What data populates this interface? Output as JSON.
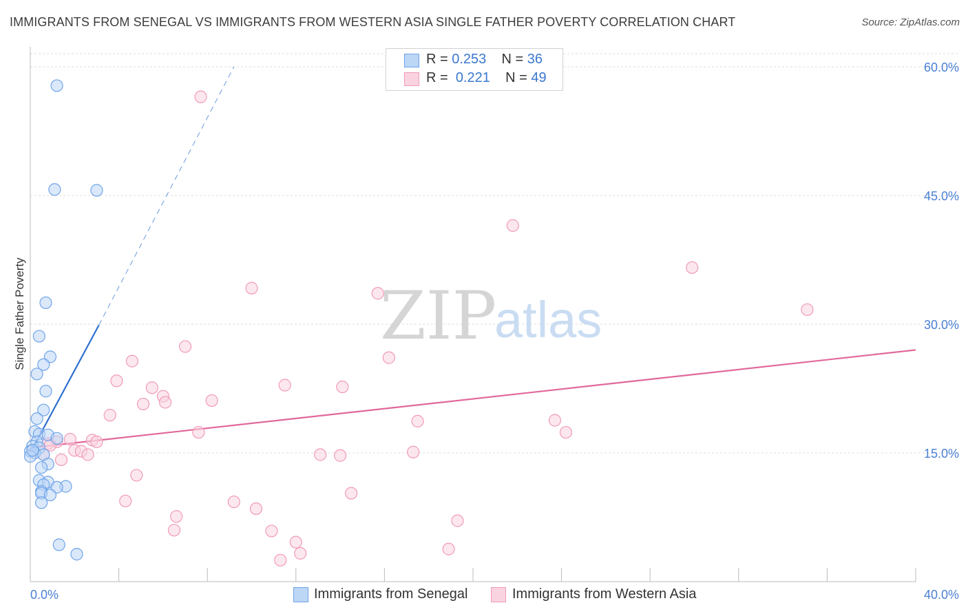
{
  "chart_data": {
    "type": "scatter",
    "title": "IMMIGRANTS FROM SENEGAL VS IMMIGRANTS FROM WESTERN ASIA SINGLE FATHER POVERTY CORRELATION CHART",
    "source": "Source: ZipAtlas.com",
    "ylabel": "Single Father Poverty",
    "xlim": [
      0,
      40
    ],
    "ylim": [
      0,
      60
    ],
    "y_ticks": [
      {
        "value": 15,
        "label": "15.0%"
      },
      {
        "value": 30,
        "label": "30.0%"
      },
      {
        "value": 45,
        "label": "45.0%"
      },
      {
        "value": 60,
        "label": "60.0%"
      }
    ],
    "x_tick_labels": {
      "min": "0.0%",
      "max": "40.0%"
    },
    "watermark": {
      "zip": "ZIP",
      "atlas": "atlas"
    },
    "legend": {
      "rows": [
        {
          "r_label": "R =",
          "r_value": "0.253",
          "n_label": "N =",
          "n_value": "36"
        },
        {
          "r_label": "R =",
          "r_value": "0.221",
          "n_label": "N =",
          "n_value": "49"
        }
      ]
    },
    "series": [
      {
        "name": "Immigrants from Senegal",
        "color": "#6fa4e8",
        "fill": "#bcd6f5",
        "line_color": "#2d6fcf",
        "trend": {
          "x0": 0.0,
          "y0": 15.0,
          "x1": 3.1,
          "y1": 29.9,
          "dash_x1": 9.2,
          "dash_y1": 60.0
        },
        "points": [
          [
            1.2,
            57.8
          ],
          [
            1.1,
            45.7
          ],
          [
            3.0,
            45.6
          ],
          [
            0.7,
            32.5
          ],
          [
            0.4,
            28.6
          ],
          [
            0.9,
            26.2
          ],
          [
            0.6,
            25.3
          ],
          [
            0.3,
            24.2
          ],
          [
            0.7,
            22.2
          ],
          [
            0.6,
            20.0
          ],
          [
            0.3,
            19.0
          ],
          [
            0.2,
            17.5
          ],
          [
            0.4,
            17.2
          ],
          [
            0.8,
            17.1
          ],
          [
            1.2,
            16.7
          ],
          [
            0.3,
            16.3
          ],
          [
            0.1,
            15.8
          ],
          [
            0.4,
            15.6
          ],
          [
            0.0,
            15.2
          ],
          [
            0.2,
            15.0
          ],
          [
            0.6,
            14.8
          ],
          [
            0.0,
            14.6
          ],
          [
            0.8,
            13.7
          ],
          [
            0.5,
            13.3
          ],
          [
            0.4,
            11.8
          ],
          [
            0.8,
            11.6
          ],
          [
            0.6,
            11.3
          ],
          [
            1.6,
            11.1
          ],
          [
            1.2,
            11.0
          ],
          [
            0.5,
            10.5
          ],
          [
            0.5,
            10.3
          ],
          [
            0.9,
            10.1
          ],
          [
            0.5,
            9.2
          ],
          [
            1.3,
            4.3
          ],
          [
            2.1,
            3.2
          ],
          [
            0.1,
            15.3
          ]
        ]
      },
      {
        "name": "Immigrants from Western Asia",
        "color": "#f09ab8",
        "fill": "#fad3e0",
        "line_color": "#e0679a",
        "trend": {
          "x0": 0.0,
          "y0": 15.6,
          "x1": 40.0,
          "y1": 27.0
        },
        "points": [
          [
            7.7,
            56.5
          ],
          [
            21.8,
            41.5
          ],
          [
            29.9,
            36.6
          ],
          [
            10.0,
            34.2
          ],
          [
            15.7,
            33.6
          ],
          [
            35.1,
            31.7
          ],
          [
            7.0,
            27.4
          ],
          [
            16.2,
            26.1
          ],
          [
            4.6,
            25.7
          ],
          [
            3.9,
            23.4
          ],
          [
            11.5,
            22.9
          ],
          [
            14.1,
            22.7
          ],
          [
            5.5,
            22.6
          ],
          [
            6.0,
            21.6
          ],
          [
            8.2,
            21.1
          ],
          [
            5.1,
            20.7
          ],
          [
            6.1,
            20.9
          ],
          [
            3.6,
            19.4
          ],
          [
            17.5,
            18.7
          ],
          [
            23.7,
            18.8
          ],
          [
            7.6,
            17.4
          ],
          [
            24.2,
            17.4
          ],
          [
            2.8,
            16.5
          ],
          [
            3.0,
            16.3
          ],
          [
            1.2,
            16.3
          ],
          [
            0.8,
            16.1
          ],
          [
            1.8,
            16.6
          ],
          [
            0.9,
            15.9
          ],
          [
            2.0,
            15.3
          ],
          [
            2.3,
            15.2
          ],
          [
            2.6,
            14.8
          ],
          [
            17.3,
            15.1
          ],
          [
            13.1,
            14.8
          ],
          [
            14.0,
            14.7
          ],
          [
            1.4,
            14.2
          ],
          [
            4.8,
            12.4
          ],
          [
            14.5,
            10.3
          ],
          [
            4.3,
            9.4
          ],
          [
            9.2,
            9.3
          ],
          [
            10.2,
            8.5
          ],
          [
            6.6,
            7.6
          ],
          [
            19.3,
            7.1
          ],
          [
            6.5,
            6.0
          ],
          [
            10.9,
            5.9
          ],
          [
            12.0,
            4.6
          ],
          [
            18.9,
            3.8
          ],
          [
            12.2,
            3.3
          ],
          [
            11.3,
            2.5
          ],
          [
            0.6,
            14.8
          ]
        ]
      }
    ]
  }
}
